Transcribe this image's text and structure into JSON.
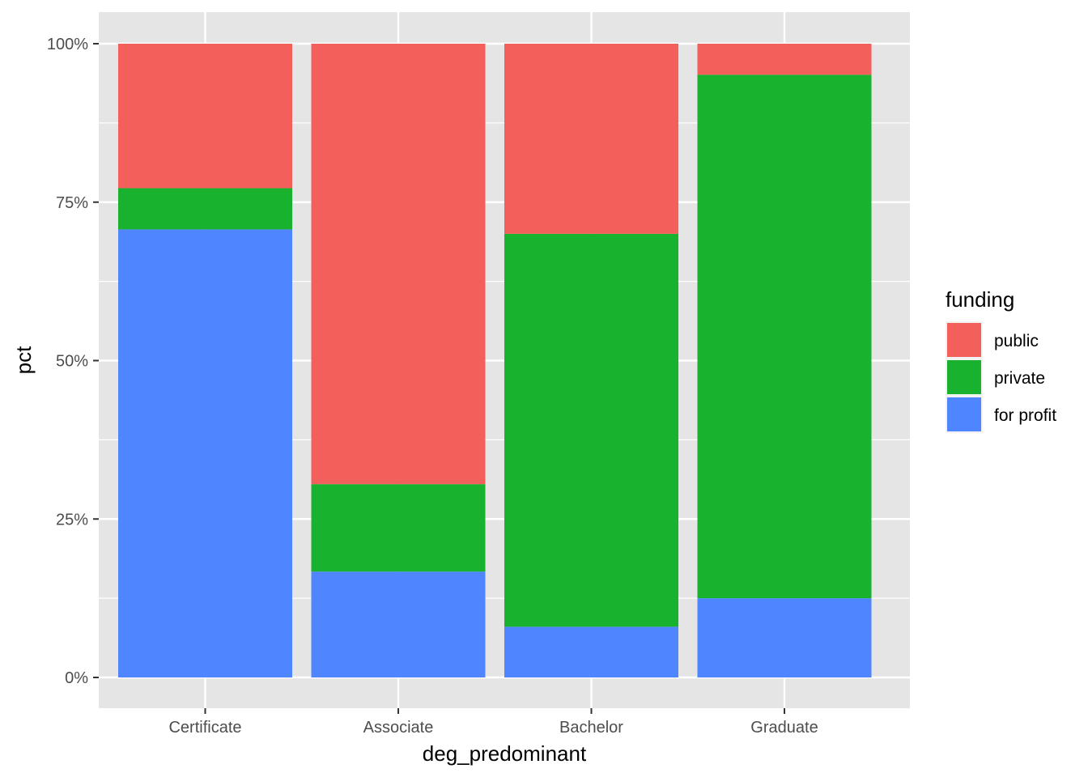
{
  "chart_data": {
    "type": "bar",
    "stacked": true,
    "percent": true,
    "xlabel": "deg_predominant",
    "ylabel": "pct",
    "categories": [
      "Certificate",
      "Associate",
      "Bachelor",
      "Graduate"
    ],
    "series": [
      {
        "name": "for profit",
        "color": "#4F86FF",
        "values": [
          0.707,
          0.167,
          0.08,
          0.125
        ]
      },
      {
        "name": "private",
        "color": "#19B22F",
        "values": [
          0.065,
          0.138,
          0.62,
          0.826
        ]
      },
      {
        "name": "public",
        "color": "#F3605C",
        "values": [
          0.228,
          0.695,
          0.3,
          0.049
        ]
      }
    ],
    "ylim": [
      0,
      1
    ],
    "y_ticks": [
      {
        "value": 0,
        "label": "0%"
      },
      {
        "value": 0.25,
        "label": "25%"
      },
      {
        "value": 0.5,
        "label": "50%"
      },
      {
        "value": 0.75,
        "label": "75%"
      },
      {
        "value": 1,
        "label": "100%"
      }
    ],
    "legend": {
      "title": "funding",
      "placement": "right",
      "items": [
        {
          "label": "public",
          "color": "#F3605C"
        },
        {
          "label": "private",
          "color": "#19B22F"
        },
        {
          "label": "for profit",
          "color": "#4F86FF"
        }
      ]
    },
    "panel_background": "#E5E5E5",
    "grid_color": "#FFFFFF",
    "grid": true
  }
}
